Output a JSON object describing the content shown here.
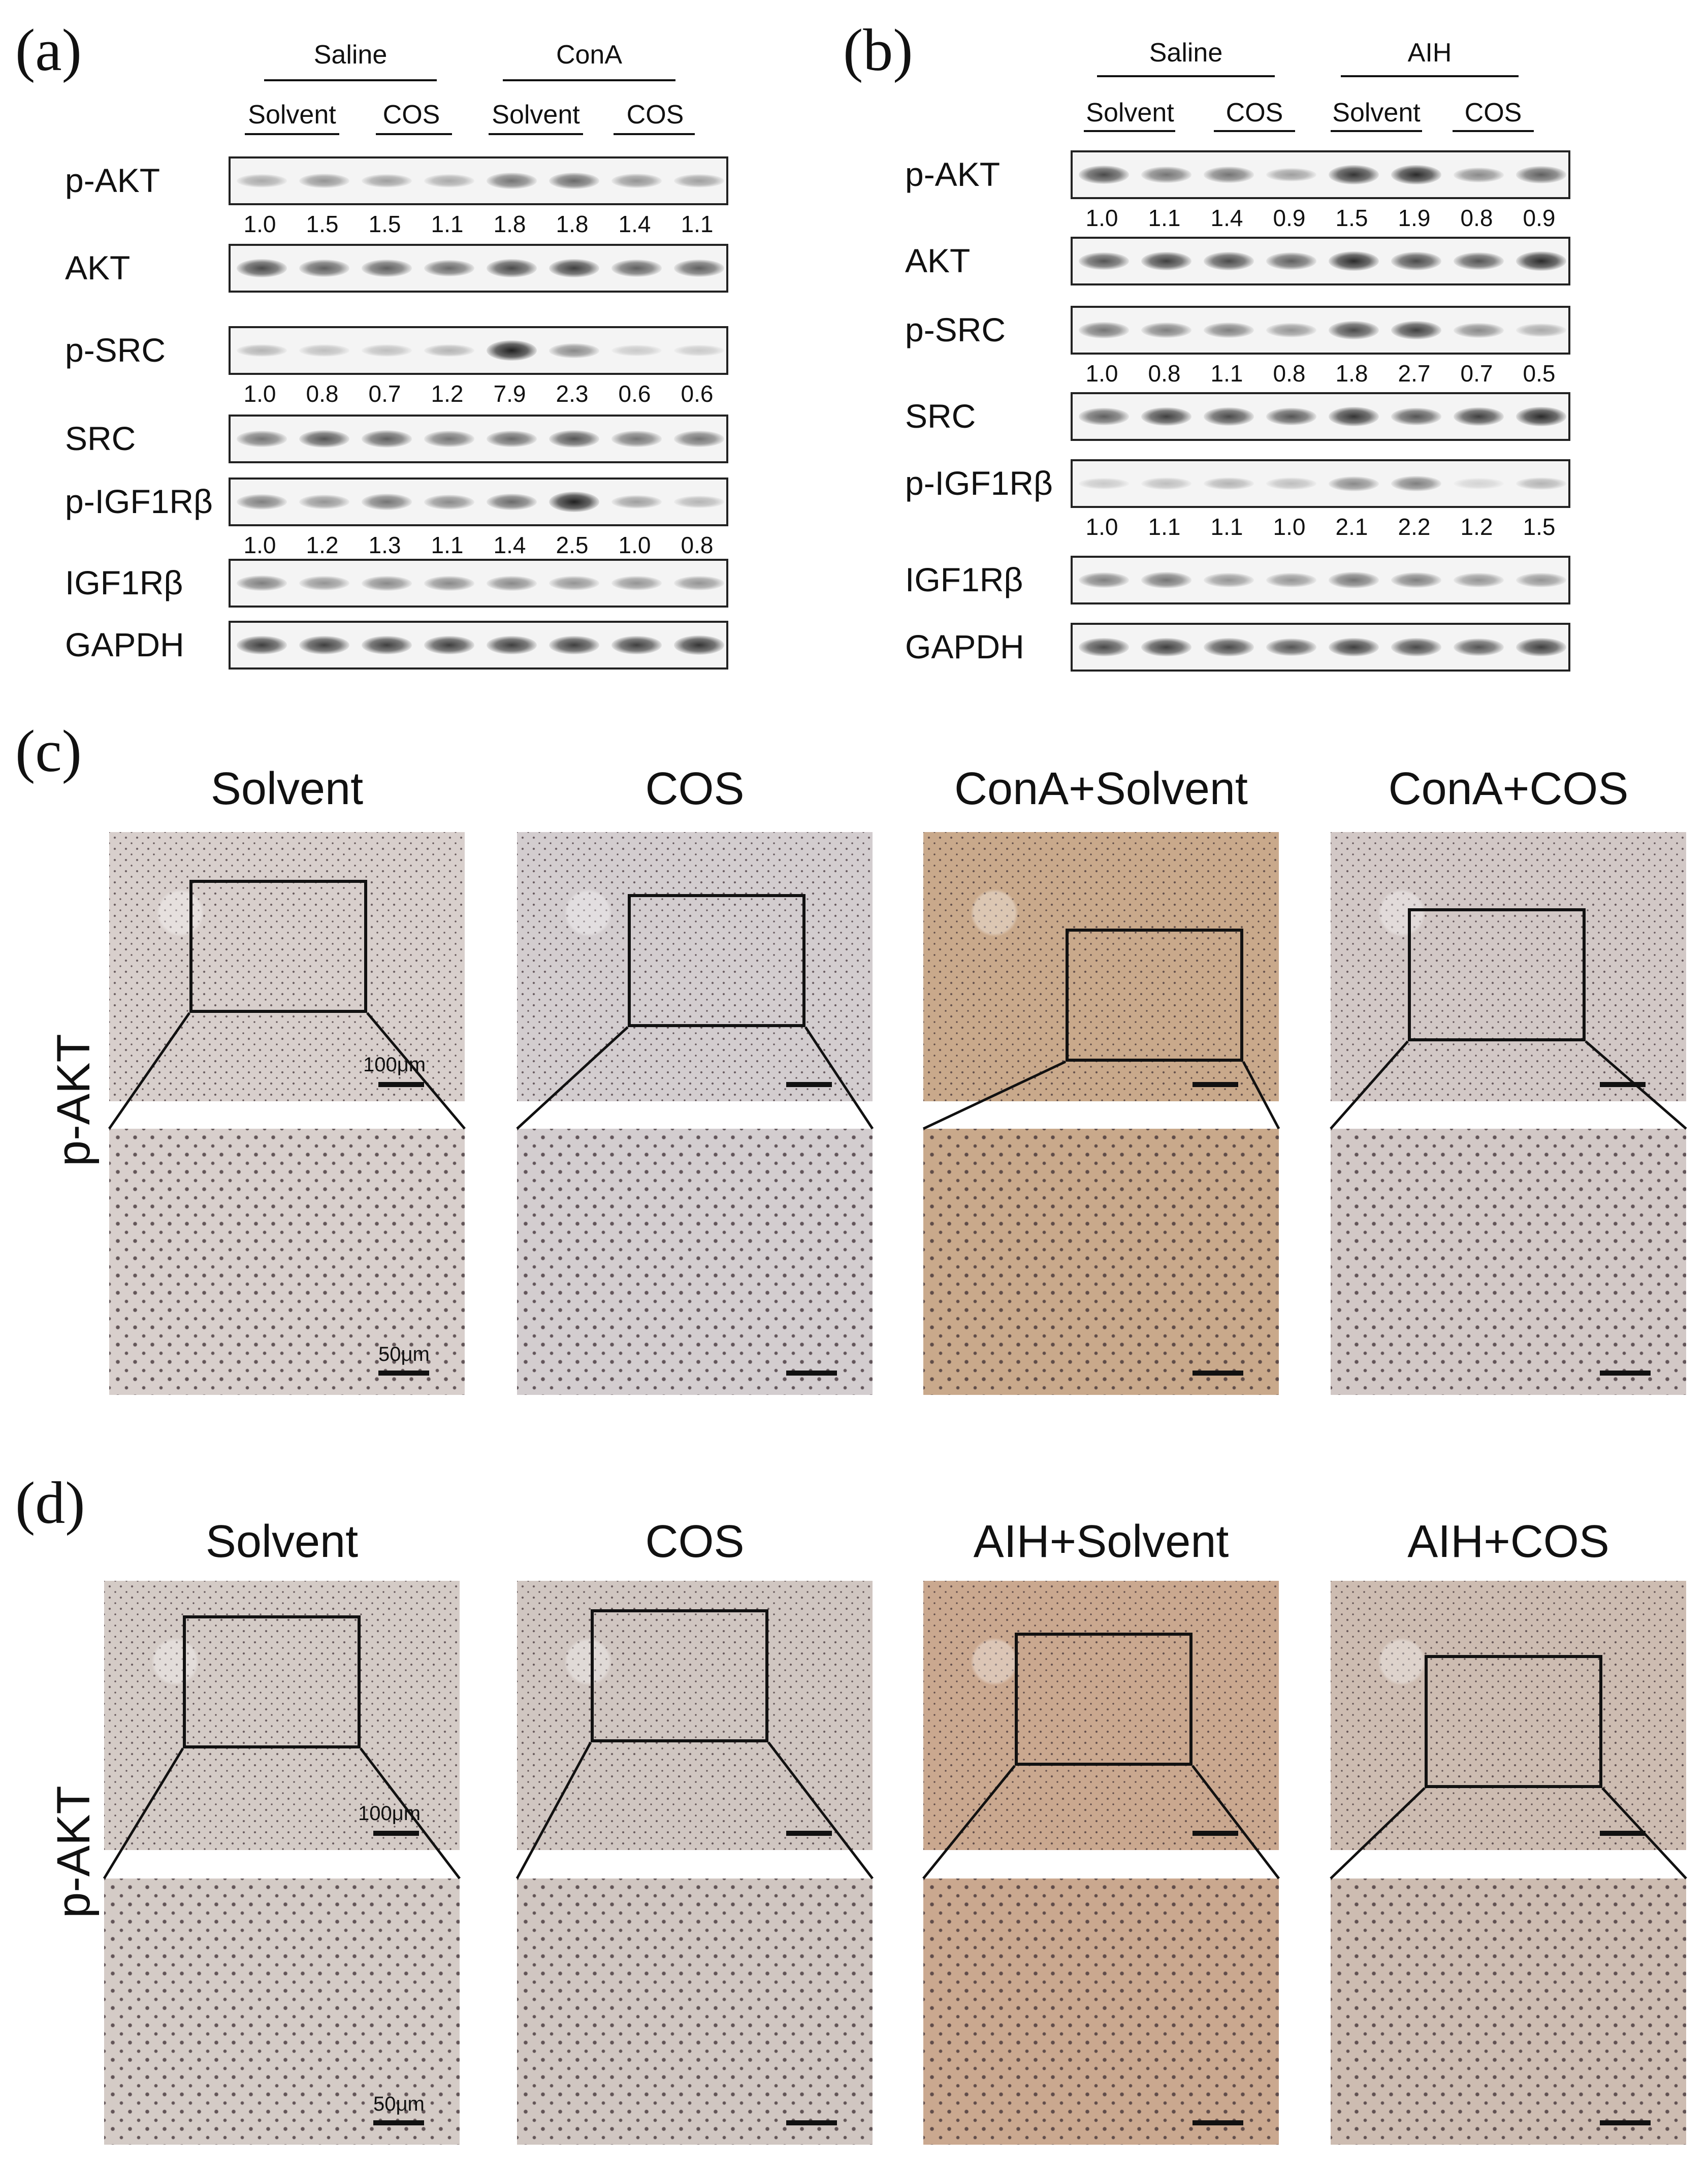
{
  "panel_a": {
    "letter": "(a)",
    "groups": {
      "top_left": "Saline",
      "top_right": "ConA",
      "sub": [
        "Solvent",
        "COS",
        "Solvent",
        "COS"
      ]
    },
    "rows": [
      {
        "label": "p-AKT",
        "values": [
          "1.0",
          "1.5",
          "1.5",
          "1.1",
          "1.8",
          "1.8",
          "1.4",
          "1.1"
        ],
        "intensity": [
          0.35,
          0.45,
          0.4,
          0.35,
          0.6,
          0.65,
          0.45,
          0.4
        ]
      },
      {
        "label": "AKT",
        "values": [],
        "intensity": [
          0.8,
          0.7,
          0.7,
          0.65,
          0.8,
          0.85,
          0.7,
          0.7
        ]
      },
      {
        "label": "p-SRC",
        "values": [
          "1.0",
          "0.8",
          "0.7",
          "1.2",
          "7.9",
          "2.3",
          "0.6",
          "0.6"
        ],
        "intensity": [
          0.3,
          0.25,
          0.25,
          0.3,
          1.0,
          0.5,
          0.2,
          0.2
        ]
      },
      {
        "label": "SRC",
        "values": [],
        "intensity": [
          0.6,
          0.75,
          0.7,
          0.6,
          0.65,
          0.75,
          0.6,
          0.6
        ]
      },
      {
        "label": "p-IGF1Rβ",
        "values": [
          "1.0",
          "1.2",
          "1.3",
          "1.1",
          "1.4",
          "2.5",
          "1.0",
          "0.8"
        ],
        "intensity": [
          0.55,
          0.45,
          0.6,
          0.5,
          0.65,
          1.0,
          0.4,
          0.3
        ]
      },
      {
        "label": "IGF1Rβ",
        "values": [],
        "intensity": [
          0.55,
          0.45,
          0.5,
          0.5,
          0.5,
          0.45,
          0.45,
          0.45
        ]
      },
      {
        "label": "GAPDH",
        "values": [],
        "intensity": [
          0.85,
          0.85,
          0.85,
          0.85,
          0.85,
          0.85,
          0.85,
          0.9
        ]
      }
    ]
  },
  "panel_b": {
    "letter": "(b)",
    "groups": {
      "top_left": "Saline",
      "top_right": "AIH",
      "sub": [
        "Solvent",
        "COS",
        "Solvent",
        "COS"
      ]
    },
    "rows": [
      {
        "label": "p-AKT",
        "values": [
          "1.0",
          "1.1",
          "1.4",
          "0.9",
          "1.5",
          "1.9",
          "0.8",
          "0.9"
        ],
        "intensity": [
          0.8,
          0.6,
          0.6,
          0.4,
          0.9,
          0.95,
          0.5,
          0.7
        ]
      },
      {
        "label": "AKT",
        "values": [],
        "intensity": [
          0.75,
          0.85,
          0.8,
          0.7,
          0.95,
          0.8,
          0.75,
          0.95
        ]
      },
      {
        "label": "p-SRC",
        "values": [
          "1.0",
          "0.8",
          "1.1",
          "0.8",
          "1.8",
          "2.7",
          "0.7",
          "0.5"
        ],
        "intensity": [
          0.6,
          0.55,
          0.55,
          0.45,
          0.8,
          0.85,
          0.5,
          0.35
        ]
      },
      {
        "label": "SRC",
        "values": [],
        "intensity": [
          0.7,
          0.85,
          0.8,
          0.75,
          0.9,
          0.75,
          0.85,
          0.95
        ]
      },
      {
        "label": "p-IGF1Rβ",
        "values": [
          "1.0",
          "1.1",
          "1.1",
          "1.0",
          "2.1",
          "2.2",
          "1.2",
          "1.5"
        ],
        "intensity": [
          0.2,
          0.25,
          0.3,
          0.25,
          0.5,
          0.55,
          0.15,
          0.3
        ]
      },
      {
        "label": "IGF1Rβ",
        "values": [],
        "intensity": [
          0.55,
          0.6,
          0.45,
          0.45,
          0.6,
          0.55,
          0.45,
          0.45
        ]
      },
      {
        "label": "GAPDH",
        "values": [],
        "intensity": [
          0.8,
          0.85,
          0.8,
          0.75,
          0.85,
          0.8,
          0.75,
          0.85
        ]
      }
    ]
  },
  "panel_c": {
    "letter": "(c)",
    "row_label": "p-AKT",
    "columns": [
      "Solvent",
      "COS",
      "ConA+Solvent",
      "ConA+COS"
    ],
    "scale_top": "100μm",
    "scale_bottom": "50μm",
    "tones": [
      "#d8cfcc",
      "#d3cdcf",
      "#c9a98b",
      "#d2c8c6"
    ]
  },
  "panel_d": {
    "letter": "(d)",
    "row_label": "p-AKT",
    "columns": [
      "Solvent",
      "COS",
      "AIH+Solvent",
      "AIH+COS"
    ],
    "scale_top": "100μm",
    "scale_bottom": "50μm",
    "tones": [
      "#d4cbc6",
      "#d0c6c1",
      "#caa88f",
      "#cdbcb1"
    ]
  }
}
